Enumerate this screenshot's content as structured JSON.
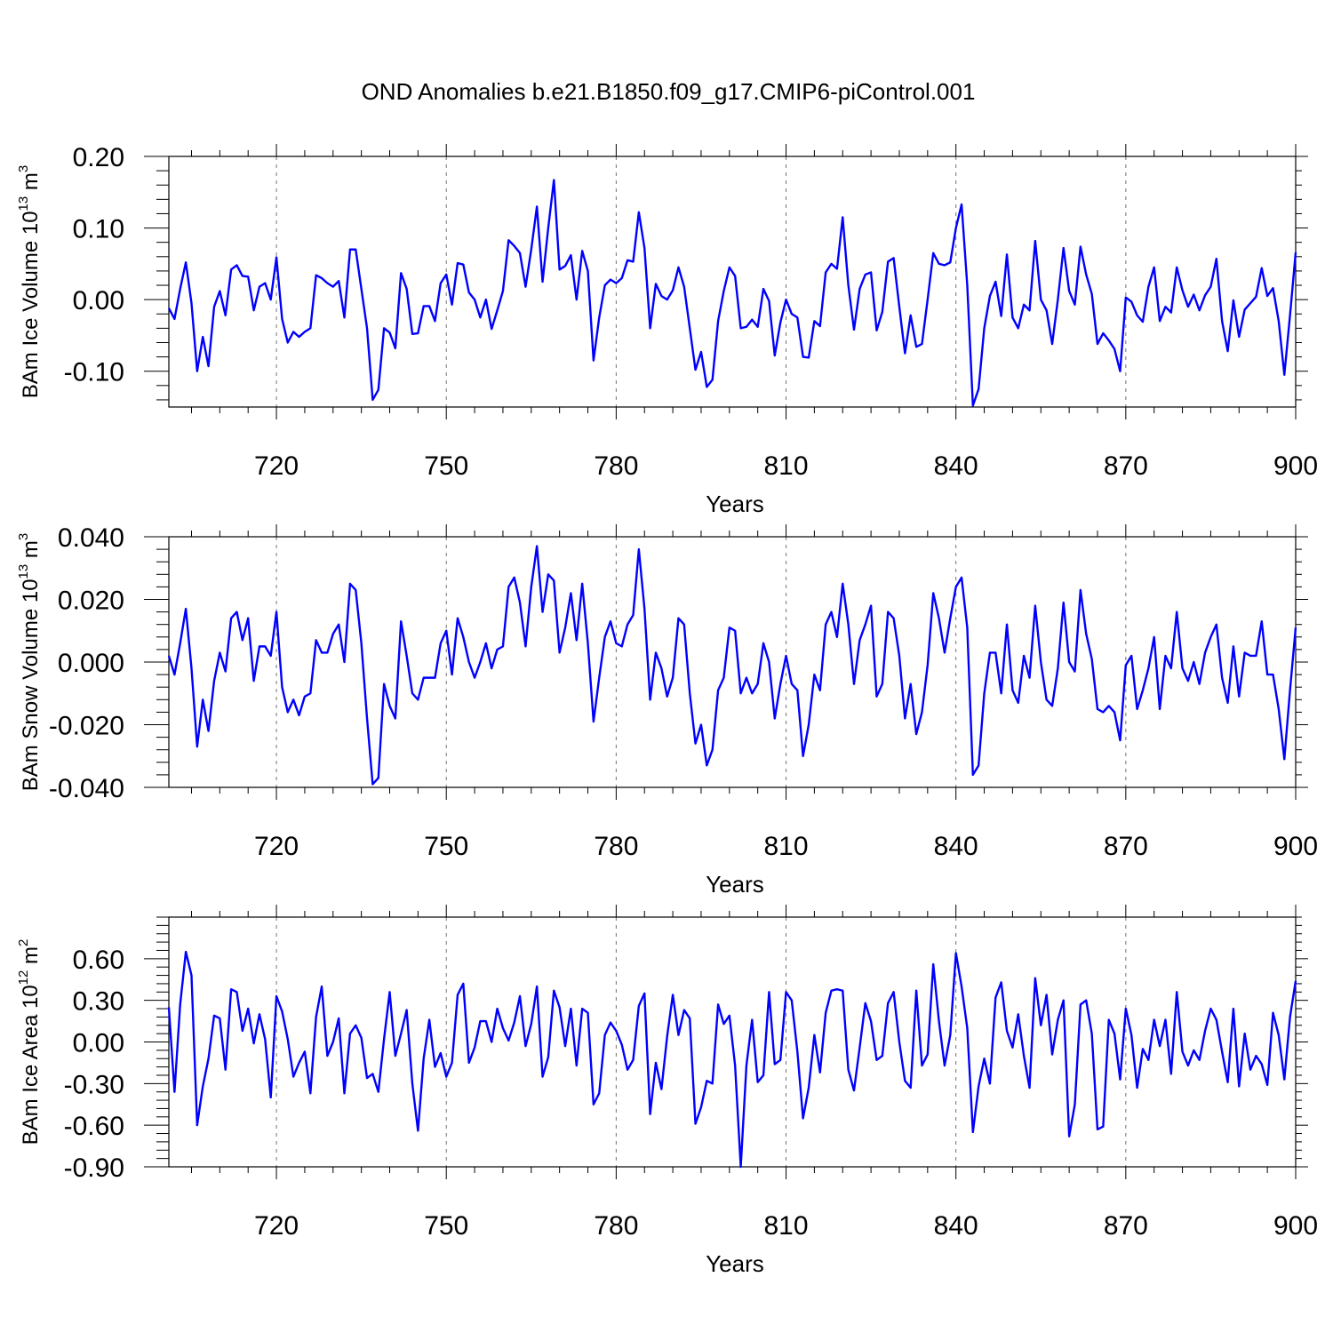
{
  "title": "OND Anomalies b.e21.B1850.f09_g17.CMIP6-piControl.001",
  "series_color": "#0000ff",
  "chart_data": [
    {
      "type": "line",
      "ylabel": "BAm Ice Volume 10",
      "ylabel_exp": "13",
      "ylabel_unit": " m",
      "ylabel_unit_exp": "3",
      "xlabel": "Years",
      "xlim": [
        701,
        900
      ],
      "ylim": [
        -0.15,
        0.2
      ],
      "xticks": [
        720,
        750,
        780,
        810,
        840,
        870,
        900
      ],
      "xtick_labels": [
        "720",
        "750",
        "780",
        "810",
        "840",
        "870",
        "900"
      ],
      "yticks": [
        -0.1,
        0.0,
        0.1,
        0.2
      ],
      "ytick_labels": [
        "-0.10",
        "0.00",
        "0.10",
        "0.20"
      ],
      "yminor_step": 0.02,
      "series": [
        {
          "name": "BAm Ice Volume",
          "x_start": 701,
          "values": [
            -0.012,
            -0.027,
            0.015,
            0.052,
            -0.005,
            -0.1,
            -0.052,
            -0.093,
            -0.01,
            0.012,
            -0.022,
            0.042,
            0.048,
            0.033,
            0.032,
            -0.015,
            0.018,
            0.023,
            0.0,
            0.059,
            -0.027,
            -0.06,
            -0.045,
            -0.052,
            -0.045,
            -0.04,
            0.034,
            0.03,
            0.023,
            0.018,
            0.026,
            -0.025,
            0.07,
            0.07,
            0.015,
            -0.04,
            -0.14,
            -0.126,
            -0.04,
            -0.046,
            -0.068,
            0.037,
            0.015,
            -0.048,
            -0.047,
            -0.009,
            -0.009,
            -0.03,
            0.023,
            0.035,
            -0.007,
            0.051,
            0.049,
            0.01,
            0.0,
            -0.025,
            0.0,
            -0.041,
            -0.015,
            0.012,
            0.083,
            0.075,
            0.065,
            0.018,
            0.07,
            0.13,
            0.025,
            0.1,
            0.167,
            0.042,
            0.047,
            0.062,
            0.0,
            0.068,
            0.04,
            -0.085,
            -0.025,
            0.02,
            0.028,
            0.023,
            0.03,
            0.055,
            0.053,
            0.122,
            0.072,
            -0.04,
            0.022,
            0.005,
            0.0,
            0.013,
            0.045,
            0.018,
            -0.04,
            -0.098,
            -0.073,
            -0.122,
            -0.112,
            -0.03,
            0.012,
            0.045,
            0.033,
            -0.04,
            -0.038,
            -0.028,
            -0.038,
            0.015,
            -0.002,
            -0.078,
            -0.032,
            0.0,
            -0.02,
            -0.025,
            -0.08,
            -0.081,
            -0.03,
            -0.037,
            0.038,
            0.05,
            0.043,
            0.115,
            0.02,
            -0.042,
            0.015,
            0.035,
            0.038,
            -0.043,
            -0.017,
            0.053,
            0.058,
            -0.01,
            -0.075,
            -0.022,
            -0.066,
            -0.062,
            0.0,
            0.065,
            0.05,
            0.048,
            0.052,
            0.1,
            0.133,
            0.02,
            -0.148,
            -0.125,
            -0.04,
            0.005,
            0.025,
            -0.023,
            0.063,
            -0.025,
            -0.04,
            -0.007,
            -0.015,
            0.082,
            0.0,
            -0.015,
            -0.062,
            0.0,
            0.072,
            0.012,
            -0.007,
            0.074,
            0.035,
            0.008,
            -0.062,
            -0.047,
            -0.057,
            -0.069,
            -0.1,
            0.003,
            -0.003,
            -0.022,
            -0.031,
            0.018,
            0.045,
            -0.03,
            -0.01,
            -0.018,
            0.045,
            0.013,
            -0.01,
            0.007,
            -0.015,
            0.006,
            0.018,
            0.057,
            -0.03,
            -0.072,
            -0.001,
            -0.052,
            -0.014,
            -0.005,
            0.004,
            0.044,
            0.005,
            0.016,
            -0.03,
            -0.105,
            -0.022,
            0.066
          ]
        }
      ]
    },
    {
      "type": "line",
      "ylabel": "BAm Snow Volume 10",
      "ylabel_exp": "13",
      "ylabel_unit": " m",
      "ylabel_unit_exp": "3",
      "xlabel": "Years",
      "xlim": [
        701,
        900
      ],
      "ylim": [
        -0.04,
        0.04
      ],
      "xticks": [
        720,
        750,
        780,
        810,
        840,
        870,
        900
      ],
      "xtick_labels": [
        "720",
        "750",
        "780",
        "810",
        "840",
        "870",
        "900"
      ],
      "yticks": [
        -0.04,
        -0.02,
        0.0,
        0.02,
        0.04
      ],
      "ytick_labels": [
        "-0.040",
        "-0.020",
        "0.000",
        "0.020",
        "0.040"
      ],
      "yminor_step": 0.004,
      "series": [
        {
          "name": "BAm Snow Volume",
          "x_start": 701,
          "values": [
            0.002,
            -0.004,
            0.006,
            0.017,
            -0.002,
            -0.027,
            -0.012,
            -0.022,
            -0.006,
            0.003,
            -0.003,
            0.014,
            0.016,
            0.007,
            0.014,
            -0.006,
            0.005,
            0.005,
            0.002,
            0.016,
            -0.008,
            -0.016,
            -0.012,
            -0.017,
            -0.011,
            -0.01,
            0.007,
            0.003,
            0.003,
            0.009,
            0.012,
            0.0,
            0.025,
            0.023,
            0.006,
            -0.018,
            -0.039,
            -0.037,
            -0.007,
            -0.014,
            -0.018,
            0.013,
            0.002,
            -0.01,
            -0.012,
            -0.005,
            -0.005,
            -0.005,
            0.006,
            0.01,
            -0.004,
            0.014,
            0.008,
            0.0,
            -0.005,
            0.0,
            0.006,
            -0.002,
            0.004,
            0.005,
            0.024,
            0.027,
            0.019,
            0.005,
            0.024,
            0.037,
            0.016,
            0.028,
            0.026,
            0.003,
            0.011,
            0.022,
            0.007,
            0.025,
            0.006,
            -0.019,
            -0.005,
            0.008,
            0.013,
            0.006,
            0.005,
            0.012,
            0.015,
            0.036,
            0.017,
            -0.012,
            0.003,
            -0.002,
            -0.011,
            -0.005,
            0.014,
            0.012,
            -0.01,
            -0.026,
            -0.02,
            -0.033,
            -0.028,
            -0.009,
            -0.005,
            0.011,
            0.01,
            -0.01,
            -0.005,
            -0.01,
            -0.007,
            0.006,
            0.0,
            -0.018,
            -0.007,
            0.002,
            -0.007,
            -0.009,
            -0.03,
            -0.02,
            -0.004,
            -0.009,
            0.012,
            0.016,
            0.008,
            0.025,
            0.012,
            -0.007,
            0.007,
            0.012,
            0.018,
            -0.011,
            -0.007,
            0.016,
            0.014,
            0.002,
            -0.018,
            -0.007,
            -0.023,
            -0.016,
            -0.001,
            0.022,
            0.014,
            0.003,
            0.014,
            0.024,
            0.027,
            0.011,
            -0.036,
            -0.033,
            -0.01,
            0.003,
            0.003,
            -0.01,
            0.012,
            -0.009,
            -0.013,
            0.002,
            -0.005,
            0.018,
            0.0,
            -0.012,
            -0.014,
            -0.002,
            0.019,
            0.0,
            -0.003,
            0.023,
            0.009,
            0.001,
            -0.015,
            -0.016,
            -0.014,
            -0.016,
            -0.025,
            -0.001,
            0.002,
            -0.015,
            -0.009,
            -0.002,
            0.008,
            -0.015,
            0.002,
            -0.002,
            0.016,
            -0.002,
            -0.006,
            0.0,
            -0.007,
            0.003,
            0.008,
            0.012,
            -0.005,
            -0.013,
            0.005,
            -0.011,
            0.003,
            0.002,
            0.002,
            0.013,
            -0.004,
            -0.004,
            -0.015,
            -0.031,
            -0.009,
            0.011
          ]
        }
      ]
    },
    {
      "type": "line",
      "ylabel": "BAm Ice Area 10",
      "ylabel_exp": "12",
      "ylabel_unit": " m",
      "ylabel_unit_exp": "2",
      "xlabel": "Years",
      "xlim": [
        701,
        900
      ],
      "ylim": [
        -0.9,
        0.9
      ],
      "xticks": [
        720,
        750,
        780,
        810,
        840,
        870,
        900
      ],
      "xtick_labels": [
        "720",
        "750",
        "780",
        "810",
        "840",
        "870",
        "900"
      ],
      "yticks": [
        -0.9,
        -0.6,
        -0.3,
        0.0,
        0.3,
        0.6
      ],
      "ytick_labels": [
        "-0.90",
        "-0.60",
        "-0.30",
        "0.00",
        "0.30",
        "0.60"
      ],
      "yminor_step": 0.06,
      "series": [
        {
          "name": "BAm Ice Area",
          "x_start": 701,
          "values": [
            0.25,
            -0.36,
            0.27,
            0.65,
            0.48,
            -0.6,
            -0.32,
            -0.12,
            0.19,
            0.17,
            -0.2,
            0.38,
            0.36,
            0.08,
            0.24,
            -0.01,
            0.2,
            0.02,
            -0.4,
            0.33,
            0.22,
            0.02,
            -0.25,
            -0.15,
            -0.07,
            -0.37,
            0.18,
            0.4,
            -0.1,
            0.0,
            0.17,
            -0.37,
            0.06,
            0.12,
            0.03,
            -0.26,
            -0.23,
            -0.36,
            0.02,
            0.36,
            -0.1,
            0.06,
            0.23,
            -0.3,
            -0.64,
            -0.12,
            0.16,
            -0.18,
            -0.08,
            -0.25,
            -0.15,
            0.34,
            0.42,
            -0.15,
            -0.04,
            0.15,
            0.15,
            0.0,
            0.24,
            0.1,
            0.01,
            0.14,
            0.33,
            -0.03,
            0.13,
            0.4,
            -0.25,
            -0.11,
            0.37,
            0.25,
            -0.03,
            0.24,
            -0.17,
            0.24,
            0.21,
            -0.45,
            -0.37,
            0.05,
            0.14,
            0.08,
            -0.02,
            -0.2,
            -0.13,
            0.26,
            0.35,
            -0.52,
            -0.15,
            -0.34,
            0.04,
            0.34,
            0.05,
            0.23,
            0.17,
            -0.59,
            -0.47,
            -0.28,
            -0.3,
            0.27,
            0.13,
            0.19,
            -0.17,
            -0.9,
            -0.17,
            0.16,
            -0.29,
            -0.24,
            0.36,
            -0.16,
            -0.13,
            0.36,
            0.3,
            -0.07,
            -0.55,
            -0.33,
            0.05,
            -0.22,
            0.21,
            0.37,
            0.38,
            0.37,
            -0.2,
            -0.35,
            -0.04,
            0.28,
            0.15,
            -0.13,
            -0.1,
            0.28,
            0.36,
            0.0,
            -0.28,
            -0.33,
            0.37,
            -0.17,
            -0.09,
            0.56,
            0.15,
            -0.17,
            0.05,
            0.64,
            0.4,
            0.1,
            -0.65,
            -0.32,
            -0.12,
            -0.3,
            0.32,
            0.43,
            0.08,
            -0.04,
            0.2,
            -0.1,
            -0.33,
            0.46,
            0.12,
            0.34,
            -0.09,
            0.16,
            0.3,
            -0.68,
            -0.45,
            0.27,
            0.3,
            0.06,
            -0.63,
            -0.61,
            0.16,
            0.06,
            -0.27,
            0.24,
            0.05,
            -0.33,
            -0.05,
            -0.13,
            0.16,
            -0.03,
            0.16,
            -0.23,
            0.36,
            -0.07,
            -0.17,
            -0.06,
            -0.13,
            0.08,
            0.24,
            0.16,
            -0.07,
            -0.29,
            0.24,
            -0.32,
            0.06,
            -0.2,
            -0.1,
            -0.16,
            -0.31,
            0.21,
            0.05,
            -0.27,
            0.18,
            0.44
          ]
        }
      ]
    }
  ]
}
